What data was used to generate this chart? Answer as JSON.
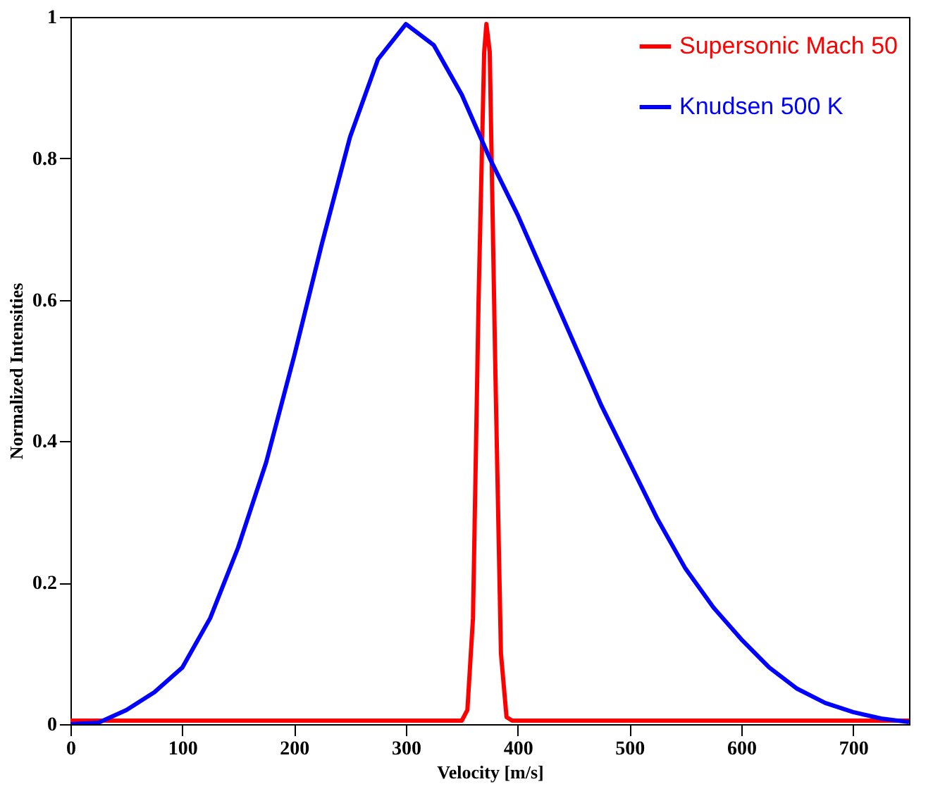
{
  "chart_data": {
    "type": "line",
    "xlabel": "Velocity [m/s]",
    "ylabel": "Normalized Intensities",
    "xlim": [
      0,
      750
    ],
    "xticks": [
      0,
      100,
      200,
      300,
      400,
      500,
      600,
      700
    ],
    "ylim": [
      0,
      1
    ],
    "yticks": [
      0,
      0.2,
      0.4,
      0.6,
      0.8,
      1
    ],
    "legend": "top right",
    "grid": false,
    "marker": "none",
    "line_style": "solid",
    "series": [
      {
        "name": "Supersonic Mach 50",
        "color": "#ff0000",
        "x": [
          0,
          350,
          355,
          360,
          365,
          370,
          372,
          375,
          380,
          385,
          390,
          395,
          750
        ],
        "values": [
          0.005,
          0.005,
          0.02,
          0.15,
          0.6,
          0.95,
          0.99,
          0.95,
          0.5,
          0.1,
          0.01,
          0.005,
          0.005
        ]
      },
      {
        "name": "Knudsen 500 K",
        "color": "#0000ff",
        "x": [
          0,
          25,
          50,
          75,
          100,
          125,
          150,
          175,
          200,
          225,
          250,
          275,
          300,
          325,
          350,
          375,
          400,
          425,
          450,
          475,
          500,
          525,
          550,
          575,
          600,
          625,
          650,
          675,
          700,
          725,
          750
        ],
        "values": [
          0,
          0.002,
          0.02,
          0.045,
          0.08,
          0.15,
          0.25,
          0.37,
          0.52,
          0.68,
          0.83,
          0.94,
          0.99,
          0.96,
          0.89,
          0.8,
          0.72,
          0.63,
          0.54,
          0.45,
          0.37,
          0.29,
          0.22,
          0.165,
          0.12,
          0.08,
          0.05,
          0.03,
          0.017,
          0.008,
          0.003
        ]
      }
    ]
  }
}
